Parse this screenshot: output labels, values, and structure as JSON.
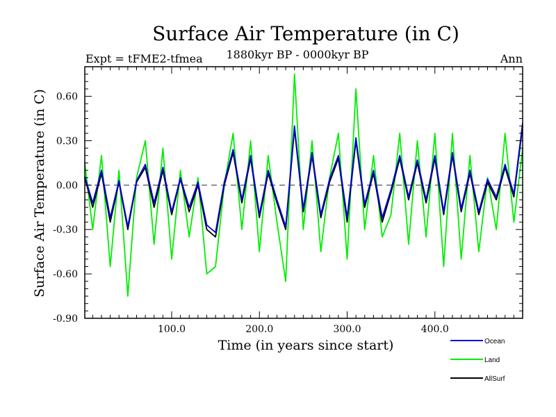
{
  "chart_data": {
    "type": "line",
    "title": "Surface Air Temperature (in C)",
    "subtitle_left": "Expt = tFME2-tfmea",
    "subtitle_center": "1880kyr BP - 0000kyr BP",
    "subtitle_right": "Ann",
    "xlabel": "Time (in years since start)",
    "ylabel": "Surface Air Temperature (in C)",
    "xlim": [
      1,
      500
    ],
    "ylim": [
      -0.9,
      0.8
    ],
    "x_ticks": [
      100,
      200,
      300,
      400
    ],
    "x_tick_labels": [
      "100.0",
      "200.0",
      "300.0",
      "400.0"
    ],
    "y_ticks": [
      -0.9,
      -0.6,
      -0.3,
      0.0,
      0.3,
      0.6
    ],
    "y_tick_labels": [
      "-0.90",
      "-0.60",
      "-0.30",
      "0.00",
      "0.30",
      "0.60"
    ],
    "zero_line": "dashed",
    "legend_position": "bottom-right",
    "x": [
      1,
      10,
      20,
      30,
      40,
      50,
      60,
      70,
      80,
      90,
      100,
      110,
      120,
      130,
      140,
      150,
      160,
      170,
      180,
      190,
      200,
      210,
      220,
      230,
      240,
      250,
      260,
      270,
      280,
      290,
      300,
      310,
      320,
      330,
      340,
      350,
      360,
      370,
      380,
      390,
      400,
      410,
      420,
      430,
      440,
      450,
      460,
      470,
      480,
      490,
      500
    ],
    "series": [
      {
        "name": "Land",
        "color": "#00ee00",
        "values": [
          0.15,
          -0.3,
          0.2,
          -0.55,
          0.1,
          -0.75,
          0.05,
          0.3,
          -0.4,
          0.25,
          -0.5,
          0.1,
          -0.35,
          0.05,
          -0.6,
          -0.55,
          0.0,
          0.35,
          -0.3,
          0.3,
          -0.45,
          0.2,
          -0.25,
          -0.65,
          0.75,
          -0.3,
          0.3,
          -0.45,
          0.05,
          0.35,
          -0.5,
          0.65,
          -0.3,
          0.2,
          -0.35,
          -0.2,
          0.35,
          -0.4,
          0.3,
          -0.35,
          0.35,
          -0.55,
          0.35,
          -0.5,
          0.2,
          -0.45,
          0.05,
          -0.3,
          0.35,
          -0.25,
          0.25
        ]
      },
      {
        "name": "AllSurf",
        "color": "#000000",
        "values": [
          0.05,
          -0.15,
          0.08,
          -0.25,
          0.02,
          -0.3,
          0.02,
          0.12,
          -0.15,
          0.1,
          -0.2,
          0.04,
          -0.18,
          0.0,
          -0.3,
          -0.35,
          0.0,
          0.22,
          -0.12,
          0.18,
          -0.22,
          0.08,
          -0.12,
          -0.3,
          0.38,
          -0.18,
          0.2,
          -0.22,
          0.02,
          0.18,
          -0.25,
          0.3,
          -0.15,
          0.08,
          -0.25,
          -0.05,
          0.18,
          -0.1,
          0.15,
          -0.12,
          0.18,
          -0.2,
          0.2,
          -0.18,
          0.08,
          -0.2,
          0.02,
          -0.1,
          0.12,
          -0.08,
          0.4
        ]
      },
      {
        "name": "Ocean",
        "color": "#0000dd",
        "values": [
          0.06,
          -0.12,
          0.1,
          -0.22,
          0.03,
          -0.28,
          0.03,
          0.14,
          -0.12,
          0.12,
          -0.18,
          0.05,
          -0.15,
          0.02,
          -0.27,
          -0.32,
          0.02,
          0.24,
          -0.1,
          0.2,
          -0.2,
          0.1,
          -0.1,
          -0.28,
          0.4,
          -0.16,
          0.22,
          -0.2,
          0.04,
          0.2,
          -0.22,
          0.32,
          -0.13,
          0.1,
          -0.22,
          -0.03,
          0.2,
          -0.08,
          0.17,
          -0.1,
          0.2,
          -0.18,
          0.22,
          -0.16,
          0.1,
          -0.18,
          0.04,
          -0.08,
          0.14,
          -0.06,
          0.42
        ]
      }
    ]
  }
}
